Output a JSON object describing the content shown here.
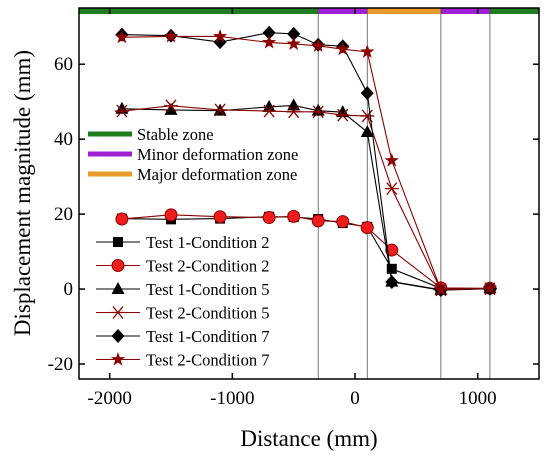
{
  "chart_data": {
    "type": "line",
    "xlabel": "Distance (mm)",
    "ylabel": "Displacement magnitude (mm)",
    "xlim": [
      -2250,
      1500
    ],
    "ylim": [
      -24,
      75
    ],
    "xticks": [
      -2000,
      -1000,
      0,
      1000
    ],
    "xtick_labels": [
      "-2000",
      "-1000",
      "0",
      "1000"
    ],
    "yticks": [
      -20,
      0,
      20,
      40,
      60
    ],
    "ytick_labels": [
      "-20",
      "0",
      "20",
      "40",
      "60"
    ],
    "grid": false,
    "vlines": [
      -300,
      100,
      700,
      1100
    ],
    "zones": [
      {
        "name": "Stable zone",
        "x": [
          -2250,
          -300
        ],
        "color": "#1e7d1e"
      },
      {
        "name": "Minor deformation zone",
        "x": [
          -300,
          100
        ],
        "color": "#a020d6"
      },
      {
        "name": "Major deformation zone",
        "x": [
          100,
          700
        ],
        "color": "#e89a2a"
      },
      {
        "name": "Minor deformation zone",
        "x": [
          700,
          1100
        ],
        "color": "#a020d6"
      },
      {
        "name": "Stable zone",
        "x": [
          1100,
          1500
        ],
        "color": "#1e7d1e"
      }
    ],
    "zone_legend": [
      {
        "label": "Stable zone",
        "color": "#1e7d1e"
      },
      {
        "label": "Minor deformation zone",
        "color": "#a020d6"
      },
      {
        "label": "Major deformation zone",
        "color": "#e89a2a"
      }
    ],
    "x": [
      -1900,
      -1500,
      -1100,
      -700,
      -500,
      -300,
      -100,
      100,
      300,
      700,
      1100
    ],
    "series": [
      {
        "name": "Test 1-Condition 2",
        "marker": "square",
        "color": "#000000",
        "values": [
          18.8,
          18.6,
          18.8,
          19.3,
          19.2,
          18.7,
          17.6,
          16.6,
          5.4,
          0.2,
          0.1
        ]
      },
      {
        "name": "Test 2-Condition 2",
        "marker": "circle",
        "color": "#8b0000",
        "values": [
          18.7,
          19.8,
          19.3,
          19.1,
          19.4,
          18.2,
          18.0,
          16.4,
          10.4,
          0.3,
          0.2
        ]
      },
      {
        "name": "Test 1-Condition 5",
        "marker": "triangle",
        "color": "#000000",
        "values": [
          48.1,
          47.8,
          47.6,
          48.6,
          49.0,
          47.6,
          47.2,
          41.9,
          2.0,
          -0.2,
          0.2
        ]
      },
      {
        "name": "Test 2-Condition 5",
        "marker": "asterisk",
        "color": "#8b0000",
        "values": [
          47.5,
          48.9,
          47.8,
          47.5,
          47.3,
          47.3,
          46.4,
          46.2,
          26.8,
          -0.2,
          0.1
        ]
      },
      {
        "name": "Test 1-Condition 7",
        "marker": "diamond",
        "color": "#000000",
        "values": [
          67.9,
          67.6,
          65.9,
          68.4,
          68.1,
          65.2,
          64.8,
          52.3,
          1.9,
          -0.3,
          0.1
        ]
      },
      {
        "name": "Test 2-Condition 7",
        "marker": "star",
        "color": "#8b0000",
        "values": [
          67.2,
          67.4,
          67.4,
          65.8,
          65.4,
          64.9,
          64.0,
          63.3,
          34.3,
          -0.2,
          0.2
        ]
      }
    ]
  }
}
